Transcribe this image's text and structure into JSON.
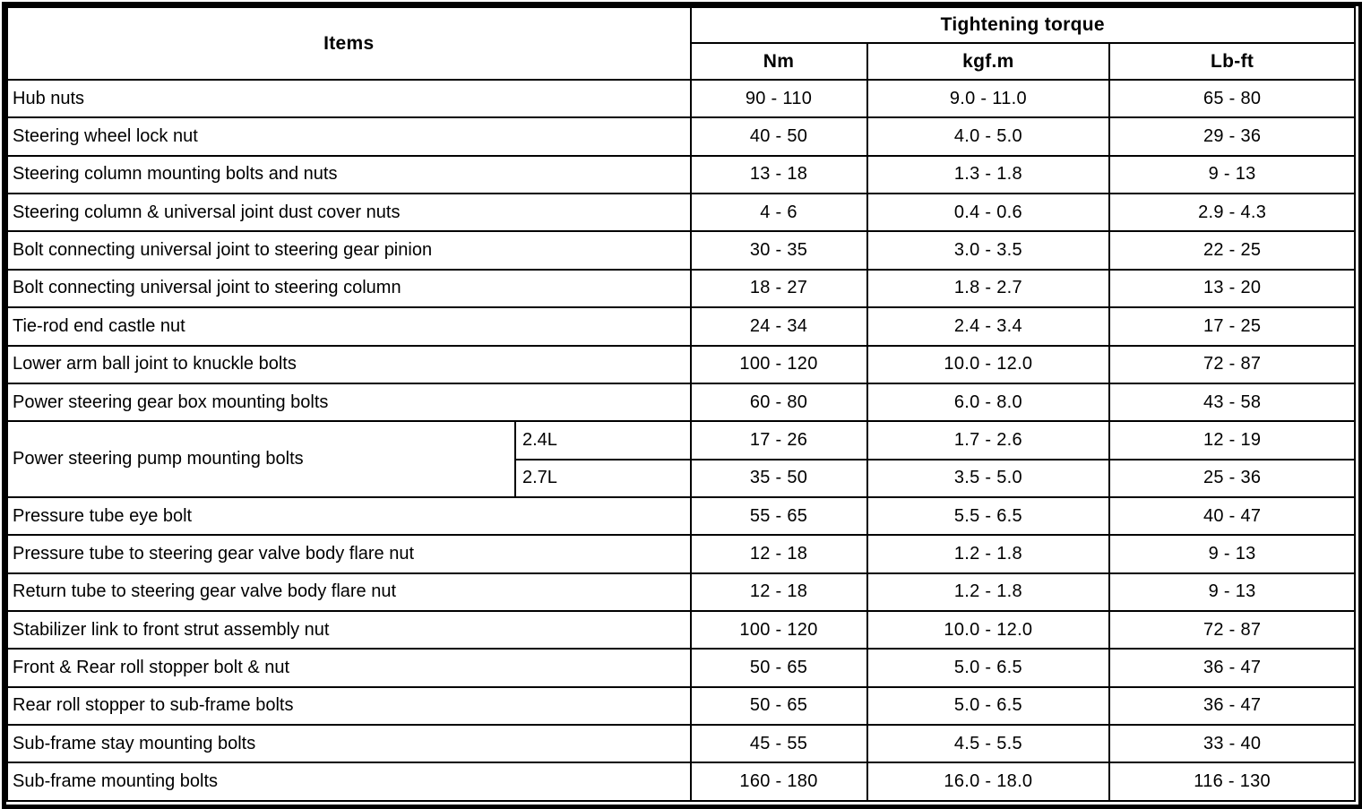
{
  "table": {
    "items_header": "Items",
    "torque_header": "Tightening torque",
    "unit_headers": [
      "Nm",
      "kgf.m",
      "Lb-ft"
    ],
    "rows": [
      {
        "item": "Hub nuts",
        "nm": "90 - 110",
        "kgfm": "9.0 - 11.0",
        "lbft": "65 - 80"
      },
      {
        "item": "Steering wheel lock nut",
        "nm": "40 - 50",
        "kgfm": "4.0 - 5.0",
        "lbft": "29 - 36"
      },
      {
        "item": "Steering column mounting bolts and nuts",
        "nm": "13 - 18",
        "kgfm": "1.3 - 1.8",
        "lbft": "9 - 13"
      },
      {
        "item": "Steering column & universal joint dust cover nuts",
        "nm": "4 - 6",
        "kgfm": "0.4 - 0.6",
        "lbft": "2.9 - 4.3"
      },
      {
        "item": "Bolt connecting universal joint to steering gear pinion",
        "nm": "30 - 35",
        "kgfm": "3.0 - 3.5",
        "lbft": "22 - 25"
      },
      {
        "item": "Bolt connecting universal joint to steering column",
        "nm": "18 - 27",
        "kgfm": "1.8 - 2.7",
        "lbft": "13 - 20"
      },
      {
        "item": "Tie-rod end castle nut",
        "nm": "24 - 34",
        "kgfm": "2.4 - 3.4",
        "lbft": "17 - 25"
      },
      {
        "item": "Lower arm ball joint to knuckle bolts",
        "nm": "100 - 120",
        "kgfm": "10.0 - 12.0",
        "lbft": "72 - 87"
      },
      {
        "item": "Power steering gear box mounting bolts",
        "nm": "60 - 80",
        "kgfm": "6.0 - 8.0",
        "lbft": "43 - 58"
      },
      {
        "item": "Power steering pump mounting bolts",
        "engine": "2.4L",
        "nm": "17 - 26",
        "kgfm": "1.7 - 2.6",
        "lbft": "12 - 19"
      },
      {
        "engine": "2.7L",
        "nm": "35 - 50",
        "kgfm": "3.5 - 5.0",
        "lbft": "25 - 36"
      },
      {
        "item": "Pressure tube eye bolt",
        "nm": "55 - 65",
        "kgfm": "5.5 - 6.5",
        "lbft": "40 - 47"
      },
      {
        "item": "Pressure tube to steering gear valve body flare nut",
        "nm": "12 - 18",
        "kgfm": "1.2 - 1.8",
        "lbft": "9 - 13"
      },
      {
        "item": "Return tube to steering gear valve body flare nut",
        "nm": "12 - 18",
        "kgfm": "1.2 - 1.8",
        "lbft": "9 - 13"
      },
      {
        "item": "Stabilizer link to front strut assembly nut",
        "nm": "100 - 120",
        "kgfm": "10.0 - 12.0",
        "lbft": "72 - 87"
      },
      {
        "item": "Front & Rear roll stopper bolt & nut",
        "nm": "50 - 65",
        "kgfm": "5.0 - 6.5",
        "lbft": "36 - 47"
      },
      {
        "item": "Rear roll stopper to sub-frame bolts",
        "nm": "50 - 65",
        "kgfm": "5.0 - 6.5",
        "lbft": "36 - 47"
      },
      {
        "item": "Sub-frame stay mounting bolts",
        "nm": "45 - 55",
        "kgfm": "4.5 - 5.5",
        "lbft": "33 - 40"
      },
      {
        "item": "Sub-frame mounting bolts",
        "nm": "160 - 180",
        "kgfm": "16.0 - 18.0",
        "lbft": "116 - 130"
      }
    ]
  }
}
